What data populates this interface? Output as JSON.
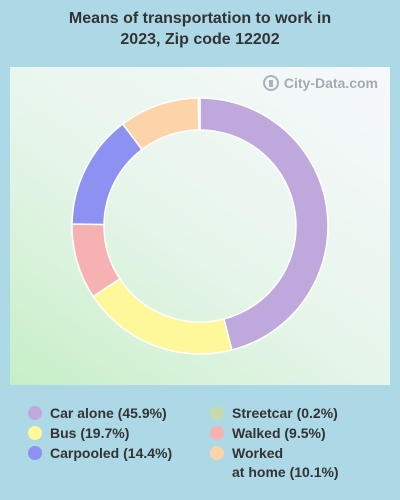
{
  "title_lines": [
    "Means of transportation to work in",
    "2023, Zip code 12202"
  ],
  "watermark": "City-Data.com",
  "chart_data": {
    "type": "pie",
    "title": "Means of transportation to work in 2023, Zip code 12202",
    "donut": true,
    "legend_placement": "bottom",
    "start_angle_deg": 0,
    "slices": [
      {
        "label": "Car alone (45.9%)",
        "value": 45.9,
        "color": "#bfa8db"
      },
      {
        "label": "Bus (19.7%)",
        "value": 19.7,
        "color": "#fef89a"
      },
      {
        "label": "Walked (9.5%)",
        "value": 9.5,
        "color": "#f6b2b2"
      },
      {
        "label": "Carpooled (14.4%)",
        "value": 14.4,
        "color": "#8d91f2"
      },
      {
        "label": "Worked\nat home (10.1%)",
        "value": 10.1,
        "color": "#fdd4a9"
      },
      {
        "label": "Streetcar (0.2%)",
        "value": 0.2,
        "color": "#c6dbad"
      }
    ],
    "legend_order_left": [
      "Car alone (45.9%)",
      "Bus (19.7%)",
      "Carpooled (14.4%)"
    ],
    "legend_order_right": [
      "Streetcar (0.2%)",
      "Walked (9.5%)",
      "Worked\nat home (10.1%)"
    ]
  }
}
